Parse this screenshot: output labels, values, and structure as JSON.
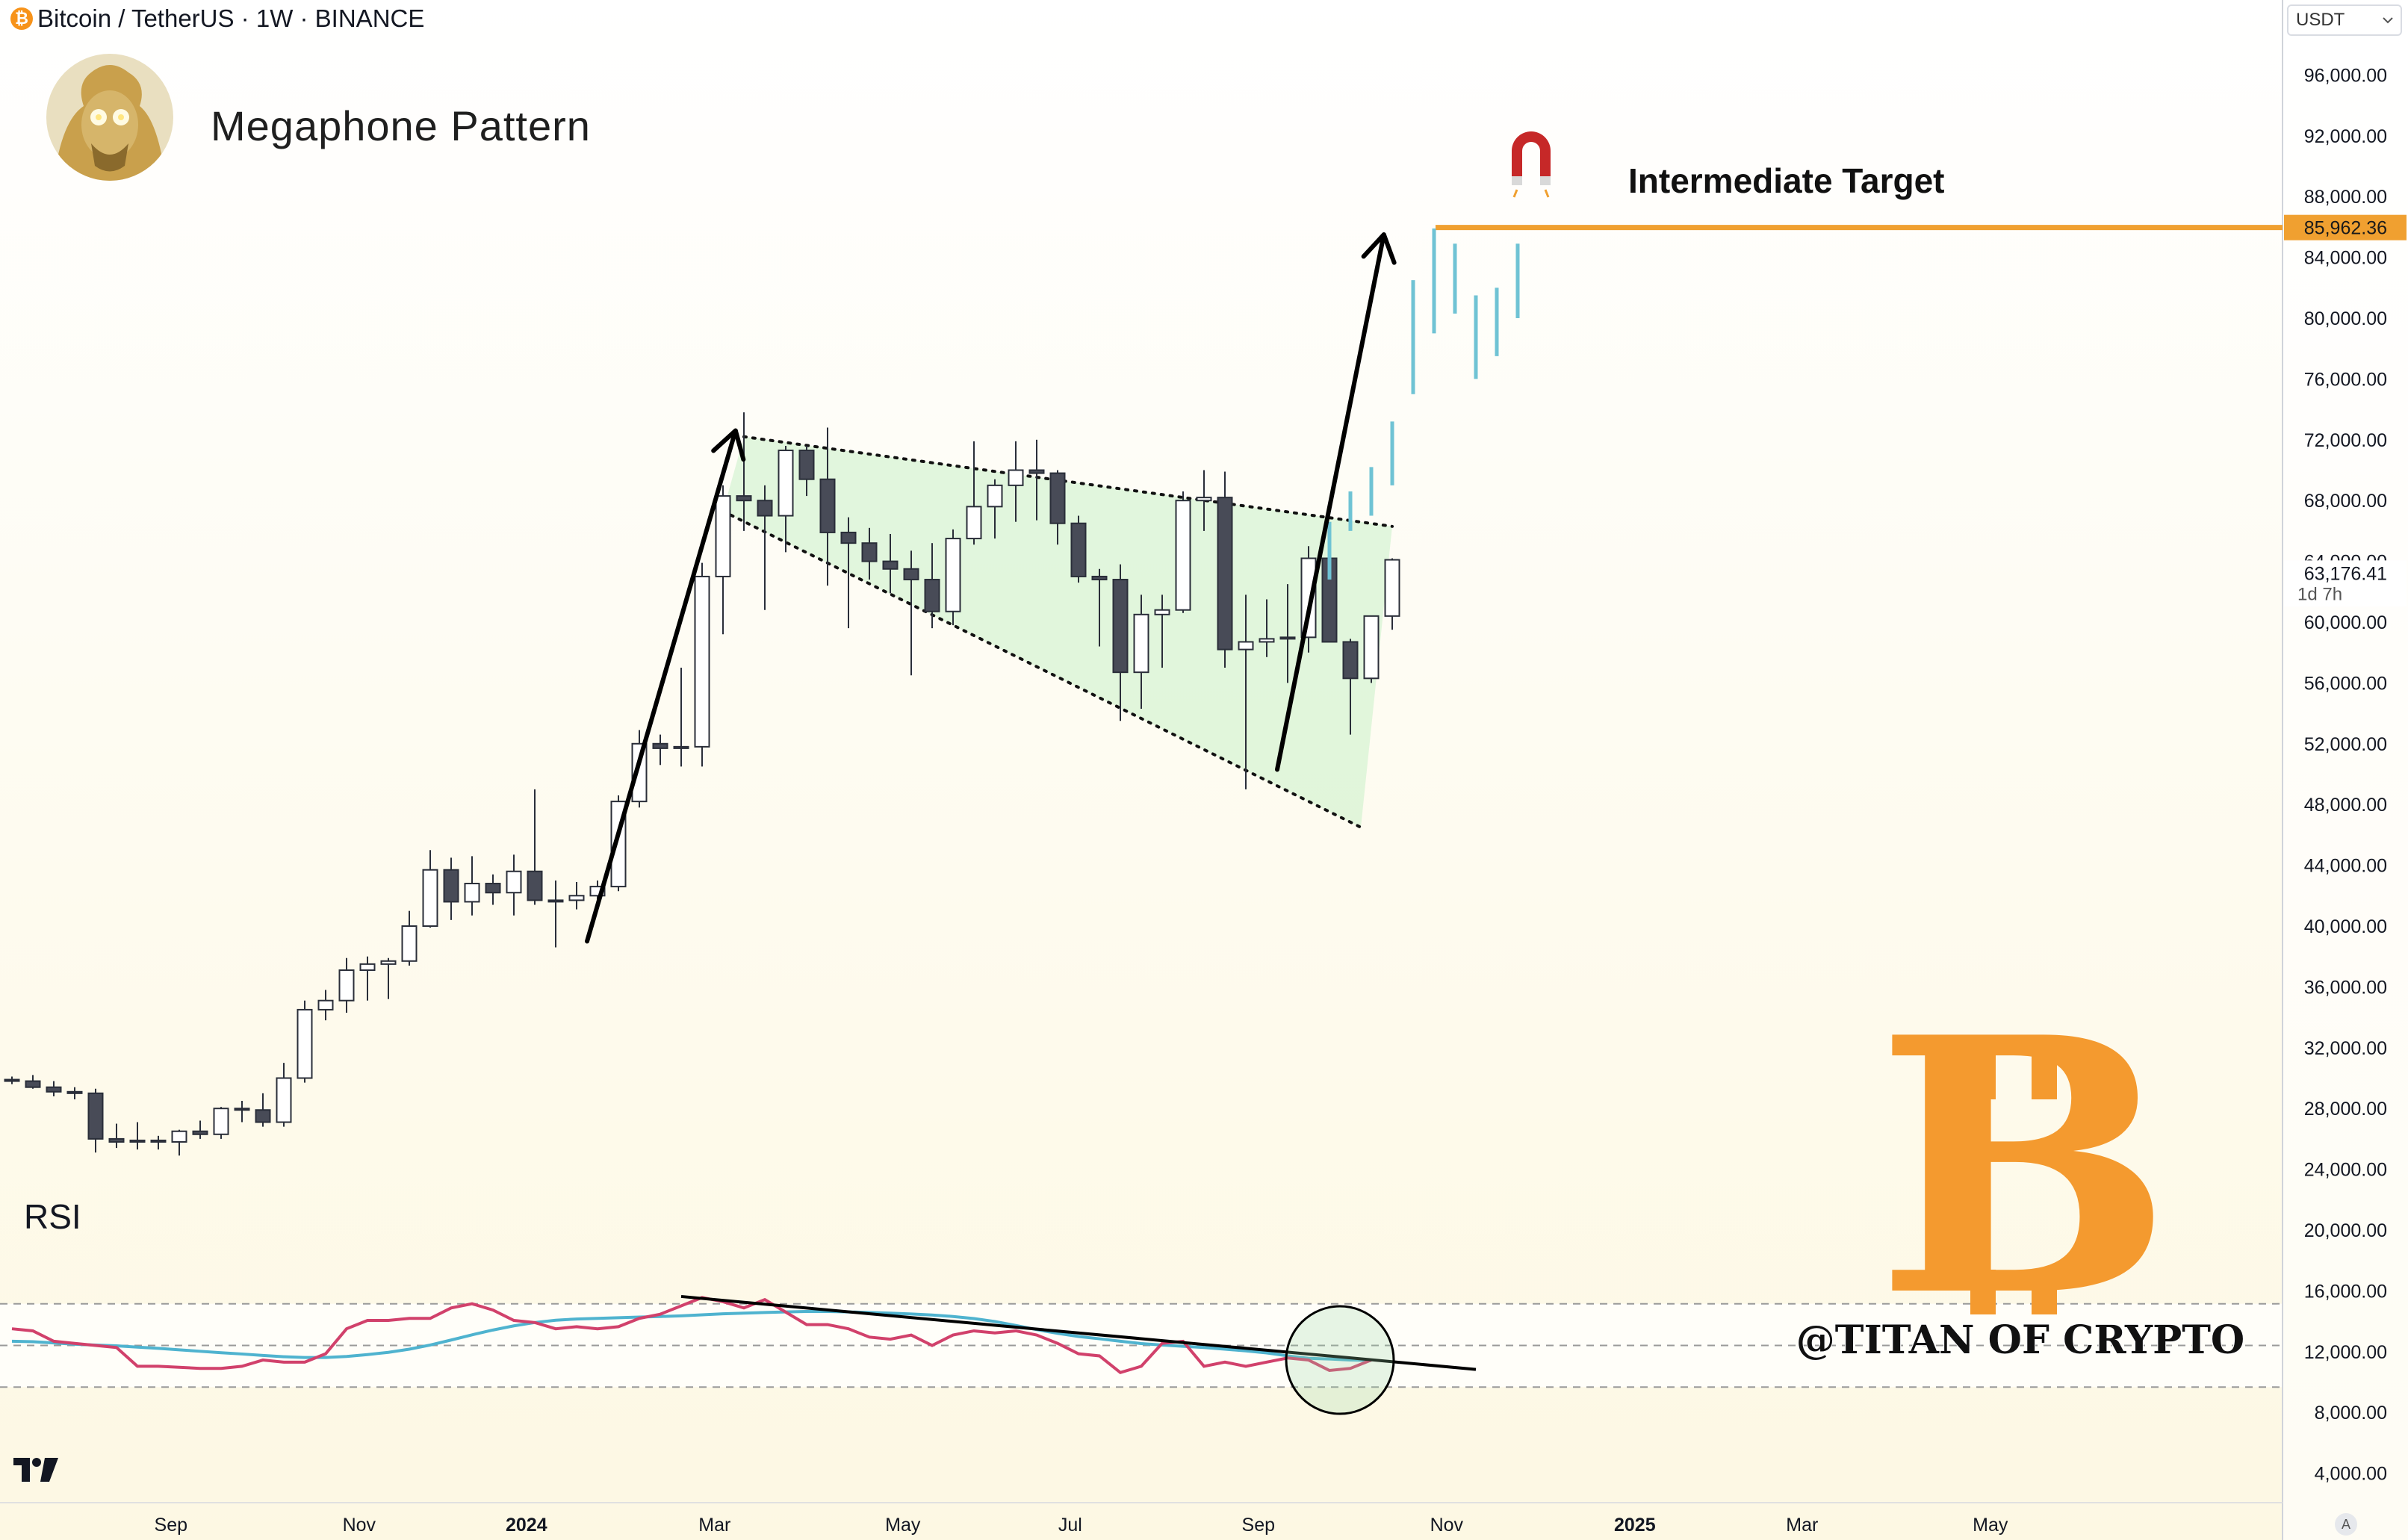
{
  "header": {
    "coin_glyph": "₿",
    "symbol_title": "Bitcoin / TetherUS · 1W · BINANCE"
  },
  "pattern_title": "Megaphone Pattern",
  "target_label": "Intermediate Target",
  "currency_selector": "USDT",
  "rsi_label": "RSI",
  "watermark": "@TITAN OF CRYPTO",
  "logo_glyph": "B",
  "auto_scale_label": "A",
  "colors": {
    "bg_top": "#ffffff",
    "bg_bottom": "#fdf8e3",
    "up_fill": "#ffffff",
    "down_fill": "#484b57",
    "candle_border": "#2a2e39",
    "target_line": "#f0a030",
    "triangle_fill": "#c8f0c8",
    "rsi_line": "#d1416b",
    "rsi_ma": "#4fb3cf",
    "projection": "#6fc3d4",
    "btc_orange": "#f49a2f",
    "magnet_red": "#c62828"
  },
  "chart_data": {
    "type": "candlestick",
    "title": "Bitcoin / TetherUS · 1W · BINANCE",
    "ylabel": "USDT",
    "ylim": [
      0,
      98000
    ],
    "y_ticks": [
      "96,000.00",
      "92,000.00",
      "88,000.00",
      "84,000.00",
      "80,000.00",
      "76,000.00",
      "72,000.00",
      "68,000.00",
      "64,000.00",
      "60,000.00",
      "56,000.00",
      "52,000.00",
      "48,000.00",
      "44,000.00",
      "40,000.00",
      "36,000.00",
      "32,000.00",
      "28,000.00",
      "24,000.00",
      "20,000.00",
      "16,000.00",
      "12,000.00",
      "8,000.00",
      "4,000.00"
    ],
    "x_labels": [
      {
        "label": "Sep",
        "i": 7.6,
        "bold": false
      },
      {
        "label": "Nov",
        "i": 16.6,
        "bold": false
      },
      {
        "label": "2024",
        "i": 24.6,
        "bold": true
      },
      {
        "label": "Mar",
        "i": 33.6,
        "bold": false
      },
      {
        "label": "May",
        "i": 42.6,
        "bold": false
      },
      {
        "label": "Jul",
        "i": 50.6,
        "bold": false
      },
      {
        "label": "Sep",
        "i": 59.6,
        "bold": false
      },
      {
        "label": "Nov",
        "i": 68.6,
        "bold": false
      },
      {
        "label": "2025",
        "i": 77.6,
        "bold": true
      },
      {
        "label": "Mar",
        "i": 85.6,
        "bold": false
      },
      {
        "label": "May",
        "i": 94.6,
        "bold": false
      }
    ],
    "candles": [
      [
        29900,
        30100,
        29600,
        29800
      ],
      [
        29800,
        30200,
        29300,
        29400
      ],
      [
        29400,
        29800,
        28800,
        29100
      ],
      [
        29100,
        29400,
        28600,
        29000
      ],
      [
        29000,
        29300,
        25100,
        26000
      ],
      [
        26000,
        27000,
        25400,
        25800
      ],
      [
        25800,
        27100,
        25300,
        25900
      ],
      [
        25900,
        26200,
        25300,
        25800
      ],
      [
        25800,
        26600,
        24900,
        26500
      ],
      [
        26500,
        27200,
        26000,
        26300
      ],
      [
        26300,
        28100,
        26000,
        28000
      ],
      [
        28000,
        28500,
        27100,
        27900
      ],
      [
        27900,
        29000,
        26800,
        27100
      ],
      [
        27100,
        31000,
        26800,
        30000
      ],
      [
        30000,
        35100,
        29700,
        34500
      ],
      [
        34500,
        35800,
        33800,
        35100
      ],
      [
        35100,
        37900,
        34300,
        37100
      ],
      [
        37100,
        38000,
        35100,
        37500
      ],
      [
        37500,
        37900,
        35200,
        37700
      ],
      [
        37700,
        41000,
        37400,
        40000
      ],
      [
        40000,
        45000,
        39900,
        43700
      ],
      [
        43700,
        44500,
        40400,
        41600
      ],
      [
        41600,
        44600,
        40700,
        42800
      ],
      [
        42800,
        43400,
        41400,
        42200
      ],
      [
        42200,
        44700,
        40700,
        43600
      ],
      [
        43600,
        49000,
        41400,
        41700
      ],
      [
        41700,
        43000,
        38600,
        41700
      ],
      [
        41700,
        42900,
        41100,
        42000
      ],
      [
        42000,
        43000,
        41300,
        42600
      ],
      [
        42600,
        48600,
        42300,
        48200
      ],
      [
        48200,
        52900,
        47800,
        52000
      ],
      [
        52000,
        52600,
        50600,
        51700
      ],
      [
        51700,
        57000,
        50500,
        51800
      ],
      [
        51800,
        63900,
        50500,
        63000
      ],
      [
        63000,
        69000,
        59200,
        68300
      ],
      [
        68300,
        73800,
        66000,
        68000
      ],
      [
        68000,
        69000,
        60800,
        67000
      ],
      [
        67000,
        71600,
        64600,
        71300
      ],
      [
        71300,
        71600,
        68300,
        69400
      ],
      [
        69400,
        72800,
        62400,
        65900
      ],
      [
        65900,
        66900,
        59600,
        65200
      ],
      [
        65200,
        66200,
        62800,
        64000
      ],
      [
        64000,
        65800,
        61900,
        63500
      ],
      [
        63500,
        64700,
        56500,
        62800
      ],
      [
        62800,
        65200,
        59600,
        60700
      ],
      [
        60700,
        66100,
        59800,
        65500
      ],
      [
        65500,
        71900,
        65100,
        67600
      ],
      [
        67600,
        69400,
        65500,
        69000
      ],
      [
        69000,
        71900,
        66600,
        70000
      ],
      [
        70000,
        72000,
        66700,
        69800
      ],
      [
        69800,
        70000,
        65100,
        66500
      ],
      [
        66500,
        67000,
        62600,
        63000
      ],
      [
        63000,
        63500,
        58400,
        62800
      ],
      [
        62800,
        63800,
        53500,
        56700
      ],
      [
        56700,
        61800,
        54300,
        60500
      ],
      [
        60500,
        61800,
        57000,
        60800
      ],
      [
        60800,
        68600,
        60600,
        68000
      ],
      [
        68000,
        70000,
        66000,
        68200
      ],
      [
        68200,
        69900,
        57000,
        58200
      ],
      [
        58200,
        61800,
        49000,
        58700
      ],
      [
        58700,
        61500,
        57700,
        58900
      ],
      [
        58900,
        62500,
        56000,
        59000
      ],
      [
        59000,
        65000,
        58000,
        64200
      ],
      [
        64200,
        64600,
        58900,
        58700
      ],
      [
        58700,
        58900,
        52600,
        56300
      ],
      [
        56300,
        60100,
        56000,
        60400
      ],
      [
        60400,
        64200,
        59500,
        64100
      ]
    ],
    "overlays": {
      "upper_trendline": [
        [
          35,
          72200
        ],
        [
          66,
          66300
        ]
      ],
      "lower_trendline": [
        [
          34,
          67300
        ],
        [
          64,
          48000
        ]
      ],
      "target_level": 85962.36,
      "current_price": 63176.41,
      "current_price_label": "63,176.41",
      "target_price_label": "85,962.36",
      "countdown": "1d 7h",
      "projection_bars": [
        [
          63,
          62800,
          66600
        ],
        [
          64,
          66000,
          68600
        ],
        [
          65,
          67000,
          70200
        ],
        [
          66,
          69000,
          73200
        ],
        [
          67,
          75000,
          82500
        ],
        [
          68,
          79000,
          85900
        ],
        [
          69,
          80300,
          84900
        ],
        [
          70,
          76000,
          81500
        ],
        [
          71,
          77500,
          82000
        ],
        [
          72,
          80000,
          84900
        ]
      ],
      "impulse_arrows": [
        [
          [
            27.5,
            39000
          ],
          [
            34.6,
            72600
          ]
        ],
        [
          [
            60.5,
            50300
          ],
          [
            65.6,
            85500
          ]
        ]
      ]
    },
    "rsi": {
      "label": "RSI",
      "levels": [
        70,
        50,
        30
      ],
      "range": [
        0,
        100
      ],
      "values": [
        58,
        57,
        52,
        51,
        50,
        49,
        40,
        40,
        39.5,
        39,
        39,
        40,
        43,
        42,
        42,
        46,
        58,
        62,
        62,
        63,
        63,
        68,
        70,
        67,
        62,
        61,
        58,
        59,
        58,
        59,
        63,
        65,
        69,
        73,
        71,
        68,
        72,
        66,
        60,
        60,
        58,
        54,
        53,
        55,
        50,
        55,
        57,
        56,
        57,
        55,
        51,
        46,
        45,
        37,
        40,
        51,
        52,
        40,
        42,
        40,
        42,
        44,
        43,
        38,
        39,
        43
      ],
      "ma_values": [
        52,
        51.8,
        51.2,
        50.6,
        50.2,
        49.8,
        49.2,
        48.6,
        47.9,
        47.2,
        46.5,
        45.9,
        45.2,
        44.6,
        44.2,
        44.2,
        44.7,
        45.6,
        46.7,
        48.2,
        50.2,
        52.6,
        55.1,
        57.4,
        59.4,
        61.0,
        62.1,
        62.7,
        63.0,
        63.3,
        63.6,
        63.9,
        64.2,
        64.7,
        65.2,
        65.5,
        65.8,
        66.1,
        66.3,
        66.3,
        66.1,
        65.8,
        65.5,
        65.1,
        64.6,
        63.9,
        62.9,
        61.5,
        59.6,
        57.6,
        55.8,
        54.3,
        53.2,
        52.0,
        50.9,
        50.2,
        49.6,
        49.0,
        48.2,
        47.4,
        46.4,
        45.0,
        43.8,
        43.5,
        43.0,
        42.8
      ],
      "trendline": [
        [
          32,
          73.5
        ],
        [
          70,
          38.5
        ]
      ],
      "highlight_index": 63.5
    }
  }
}
